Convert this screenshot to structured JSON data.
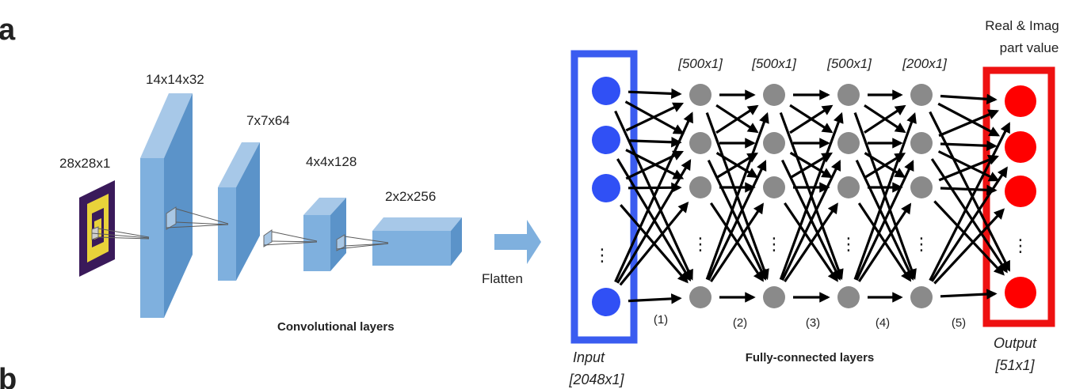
{
  "panel_labels": {
    "a": "a",
    "b": "b"
  },
  "conv": {
    "input_size": "28x28x1",
    "layer1": "14x14x32",
    "layer2": "7x7x64",
    "layer3": "4x4x128",
    "layer4": "2x2x256",
    "caption": "Convolutional layers"
  },
  "flatten_label": "Flatten",
  "fc": {
    "input_label": "Input",
    "input_size": "[2048x1]",
    "hidden_sizes": [
      "[500x1]",
      "[500x1]",
      "[500x1]",
      "[200x1]"
    ],
    "layer_numbers": [
      "(1)",
      "(2)",
      "(3)",
      "(4)",
      "(5)"
    ],
    "caption": "Fully-connected layers",
    "output_title_line1": "Real & Imag",
    "output_title_line2": "part value",
    "output_label": "Output",
    "output_size": "[51x1]",
    "ellipsis": "⋮"
  },
  "colors": {
    "conv_block": "#7fb0de",
    "conv_side": "#5b93c9",
    "input_node": "#3050f5",
    "input_box": "#3a5cf0",
    "hidden_node": "#8a8a8a",
    "output_node": "#ff0000",
    "output_box": "#ee1111",
    "pattern_bg": "#3a1a5a",
    "pattern_fg": "#e8d23a"
  }
}
